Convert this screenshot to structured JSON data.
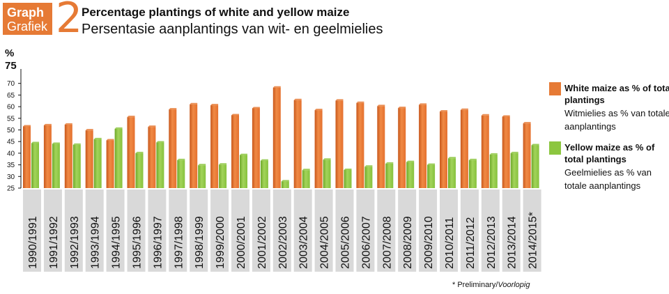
{
  "header": {
    "badge_en": "Graph",
    "badge_af": "Grafiek",
    "number": "2",
    "title": "Percentage plantings of white and yellow maize",
    "subtitle": "Persentasie aanplantings van wit- en geelmielies"
  },
  "axis": {
    "unit": "%",
    "top_label": "75"
  },
  "legend": {
    "white_en": "White maize as % of total plantings",
    "white_af": "Witmielies as % van totale aanplantings",
    "yellow_en": "Yellow maize as % of total plantings",
    "yellow_af": "Geelmielies as % van totale aanplantings"
  },
  "footnote": {
    "en": "* Preliminary/",
    "af": "Voorlopig"
  },
  "colors": {
    "white": "#e67a35",
    "yellow": "#8cc63f",
    "badge": "#e67a35",
    "label_bg": "#d9d9d9"
  },
  "chart_data": {
    "type": "bar",
    "title": "Percentage plantings of white and yellow maize",
    "xlabel": "",
    "ylabel": "%",
    "ylim": [
      25,
      75
    ],
    "yticks": [
      25,
      30,
      35,
      40,
      45,
      50,
      55,
      60,
      65,
      70
    ],
    "grid": false,
    "legend_position": "right",
    "categories": [
      "1990/1991",
      "1991/1992",
      "1992/1993",
      "1993/1994",
      "1994/1995",
      "1995/1996",
      "1996/1997",
      "1997/1998",
      "1998/1999",
      "1999/2000",
      "2000/2001",
      "2001/2002",
      "2002/2003",
      "2003/2004",
      "2004/2005",
      "2005/2006",
      "2006/2007",
      "2007/2008",
      "2008/2009",
      "2009/2010",
      "2010/2011",
      "2011/2012",
      "2012/2013",
      "2013/2014",
      "2014/2015*"
    ],
    "series": [
      {
        "name": "White maize as % of total plantings",
        "color": "#e67a35",
        "values": [
          51.5,
          52,
          52.3,
          49.8,
          45.5,
          55.5,
          51.3,
          58.8,
          61,
          60.6,
          56.3,
          59.3,
          68.2,
          62.8,
          58.5,
          62.6,
          61.6,
          60.2,
          59.4,
          60.8,
          57.9,
          58.6,
          56.2,
          55.7,
          52.8
        ]
      },
      {
        "name": "Yellow maize as % of total plantings",
        "color": "#8cc63f",
        "values": [
          44.3,
          44,
          43.6,
          46,
          50.5,
          40,
          44.6,
          37,
          34.8,
          35.1,
          39.2,
          36.8,
          27.9,
          32.7,
          37.2,
          32.8,
          34.2,
          35.5,
          36.2,
          35,
          37.8,
          37,
          39.4,
          40,
          43.4
        ]
      }
    ]
  }
}
